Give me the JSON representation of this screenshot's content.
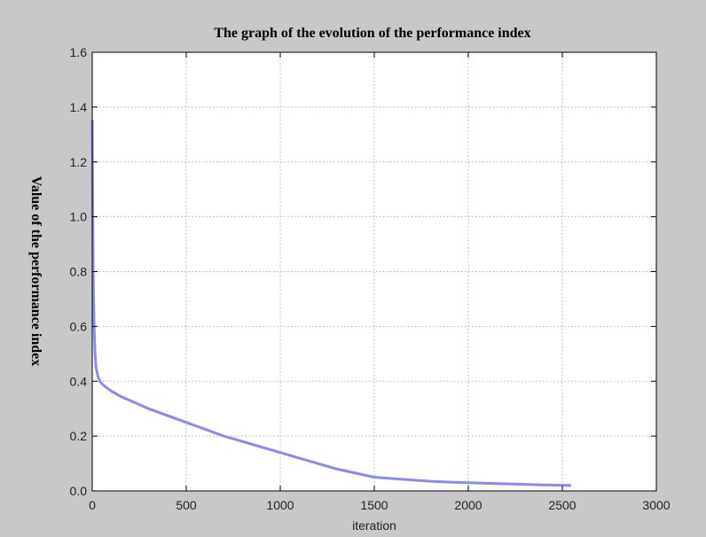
{
  "chart_data": {
    "type": "line",
    "title": "The graph of the evolution of the performance index",
    "xlabel": "iteration",
    "ylabel": "Value of the performance index",
    "xlim": [
      0,
      3000
    ],
    "ylim": [
      0.0,
      1.6
    ],
    "xticks": [
      "0",
      "500",
      "1000",
      "1500",
      "2000",
      "2500",
      "3000"
    ],
    "yticks": [
      "0.0",
      "0.2",
      "0.4",
      "0.6",
      "0.8",
      "1.0",
      "1.2",
      "1.4",
      "1.6"
    ],
    "grid": true,
    "series": [
      {
        "color": "#8a8af5",
        "x": [
          0,
          3,
          6,
          10,
          15,
          20,
          30,
          40,
          60,
          80,
          100,
          150,
          200,
          300,
          400,
          500,
          600,
          700,
          800,
          900,
          1000,
          1100,
          1200,
          1300,
          1400,
          1500,
          1600,
          1700,
          1800,
          1900,
          2000,
          2100,
          2200,
          2300,
          2400,
          2540
        ],
        "y": [
          1.35,
          1.0,
          0.75,
          0.6,
          0.5,
          0.45,
          0.42,
          0.4,
          0.385,
          0.375,
          0.365,
          0.345,
          0.33,
          0.3,
          0.275,
          0.25,
          0.225,
          0.2,
          0.18,
          0.16,
          0.14,
          0.12,
          0.1,
          0.08,
          0.065,
          0.05,
          0.045,
          0.04,
          0.035,
          0.032,
          0.03,
          0.028,
          0.026,
          0.024,
          0.022,
          0.02
        ]
      }
    ]
  }
}
